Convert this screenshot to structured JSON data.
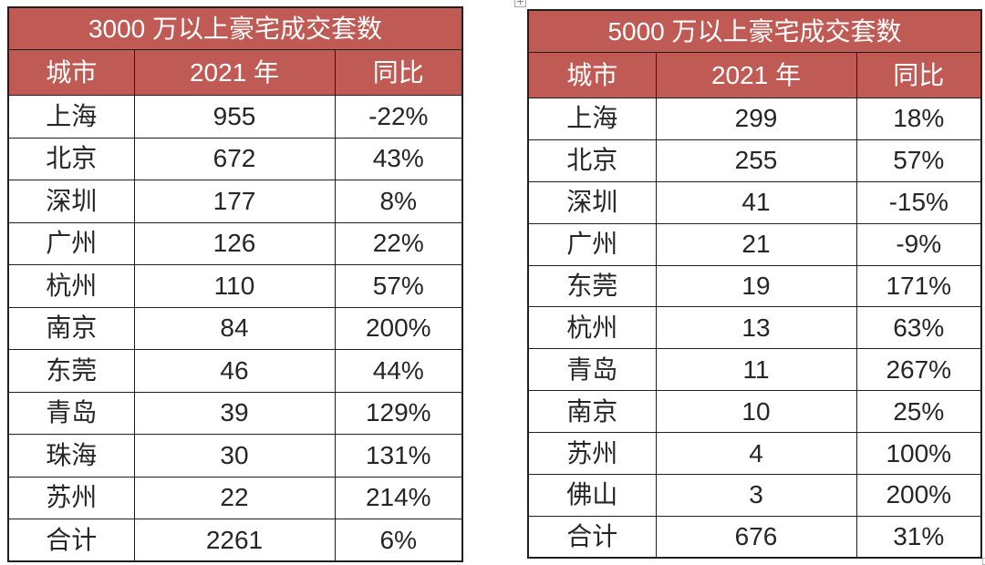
{
  "colors": {
    "header_fill": "#c05a54",
    "header_text": "#ffffff",
    "body_text": "#262626",
    "border": "#1f1f1f",
    "background": "#ffffff"
  },
  "icons": {
    "table_move_handle": "table-move-handle-icon",
    "table_resize_handle": "table-resize-handle-icon"
  },
  "chart_data": [
    {
      "type": "table",
      "title": "3000 万以上豪宅成交套数",
      "columns": [
        "城市",
        "2021 年",
        "同比"
      ],
      "rows": [
        [
          "上海",
          "955",
          "-22%"
        ],
        [
          "北京",
          "672",
          "43%"
        ],
        [
          "深圳",
          "177",
          "8%"
        ],
        [
          "广州",
          "126",
          "22%"
        ],
        [
          "杭州",
          "110",
          "57%"
        ],
        [
          "南京",
          "84",
          "200%"
        ],
        [
          "东莞",
          "46",
          "44%"
        ],
        [
          "青岛",
          "39",
          "129%"
        ],
        [
          "珠海",
          "30",
          "131%"
        ],
        [
          "苏州",
          "22",
          "214%"
        ],
        [
          "合计",
          "2261",
          "6%"
        ]
      ]
    },
    {
      "type": "table",
      "title": "5000 万以上豪宅成交套数",
      "columns": [
        "城市",
        "2021 年",
        "同比"
      ],
      "rows": [
        [
          "上海",
          "299",
          "18%"
        ],
        [
          "北京",
          "255",
          "57%"
        ],
        [
          "深圳",
          "41",
          "-15%"
        ],
        [
          "广州",
          "21",
          "-9%"
        ],
        [
          "东莞",
          "19",
          "171%"
        ],
        [
          "杭州",
          "13",
          "63%"
        ],
        [
          "青岛",
          "11",
          "267%"
        ],
        [
          "南京",
          "10",
          "25%"
        ],
        [
          "苏州",
          "4",
          "100%"
        ],
        [
          "佛山",
          "3",
          "200%"
        ],
        [
          "合计",
          "676",
          "31%"
        ]
      ]
    }
  ]
}
